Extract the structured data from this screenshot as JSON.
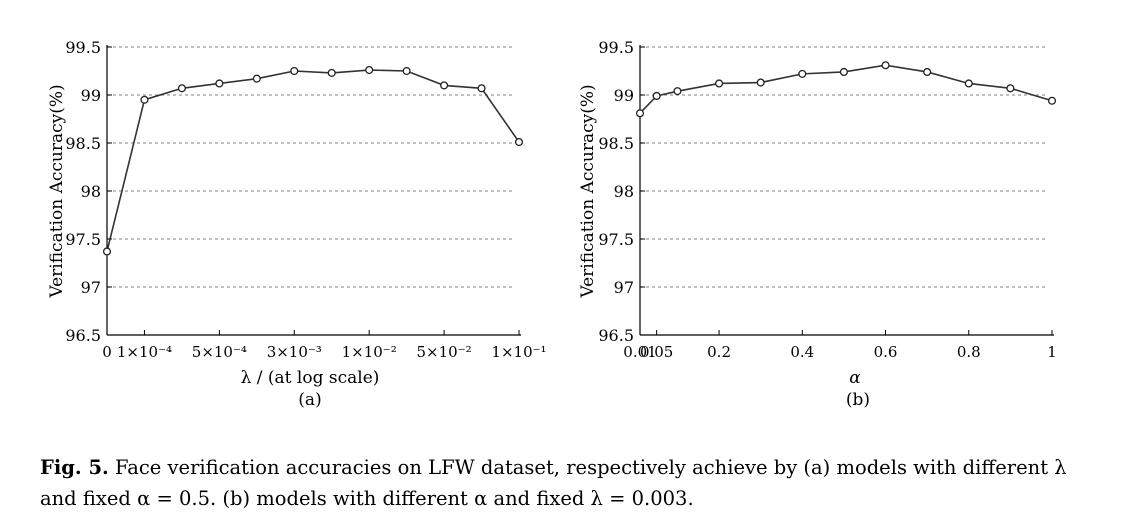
{
  "chart_data": [
    {
      "type": "line",
      "panel_label": "(a)",
      "ylabel": "Verification Accuracy(%)",
      "xlabel": "λ /  (at log scale)",
      "ylim": [
        96.5,
        99.5
      ],
      "yticks": [
        "99.5",
        "99",
        "98.5",
        "98",
        "97.5",
        "97",
        "96.5"
      ],
      "ytick_values": [
        99.5,
        99,
        98.5,
        98,
        97.5,
        97,
        96.5
      ],
      "x_ticks": [
        {
          "label": "0",
          "index": 0
        },
        {
          "label": "1×10⁻⁴",
          "index": 1
        },
        {
          "label": "5×10⁻⁴",
          "index": 3
        },
        {
          "label": "3×10⁻³",
          "index": 5
        },
        {
          "label": "1×10⁻²",
          "index": 7
        },
        {
          "label": "5×10⁻²",
          "index": 9
        },
        {
          "label": "1×10⁻¹",
          "index": 11
        }
      ],
      "x_index_count": 12,
      "values": [
        97.37,
        98.95,
        99.07,
        99.12,
        99.17,
        99.25,
        99.23,
        99.26,
        99.25,
        99.1,
        99.07,
        98.51
      ],
      "grid": "horizontal-dashed",
      "marker": "open-circle"
    },
    {
      "type": "line",
      "panel_label": "(b)",
      "ylabel": "Verification Accuracy(%)",
      "xlabel": "α",
      "ylim": [
        96.5,
        99.5
      ],
      "yticks": [
        "99.5",
        "99",
        "98.5",
        "98",
        "97.5",
        "97",
        "96.5"
      ],
      "ytick_values": [
        99.5,
        99,
        98.5,
        98,
        97.5,
        97,
        96.5
      ],
      "x_ticks": [
        {
          "label": "0.01",
          "value": 0.01
        },
        {
          "label": "0.05",
          "value": 0.05
        },
        {
          "label": "0.2",
          "value": 0.2
        },
        {
          "label": "0.4",
          "value": 0.4
        },
        {
          "label": "0.6",
          "value": 0.6
        },
        {
          "label": "0.8",
          "value": 0.8
        },
        {
          "label": "1",
          "value": 1.0
        }
      ],
      "x": [
        0.01,
        0.05,
        0.1,
        0.2,
        0.3,
        0.4,
        0.5,
        0.6,
        0.7,
        0.8,
        0.9,
        1.0
      ],
      "values": [
        98.81,
        98.99,
        99.04,
        99.12,
        99.13,
        99.22,
        99.24,
        99.31,
        99.24,
        99.12,
        99.07,
        98.94
      ],
      "grid": "horizontal-dashed",
      "marker": "open-circle"
    }
  ],
  "caption": {
    "label": "Fig. 5.",
    "text": " Face verification accuracies on LFW dataset, respectively achieve by (a) models with different λ and fixed α = 0.5. (b) models with different α and fixed λ = 0.003."
  }
}
